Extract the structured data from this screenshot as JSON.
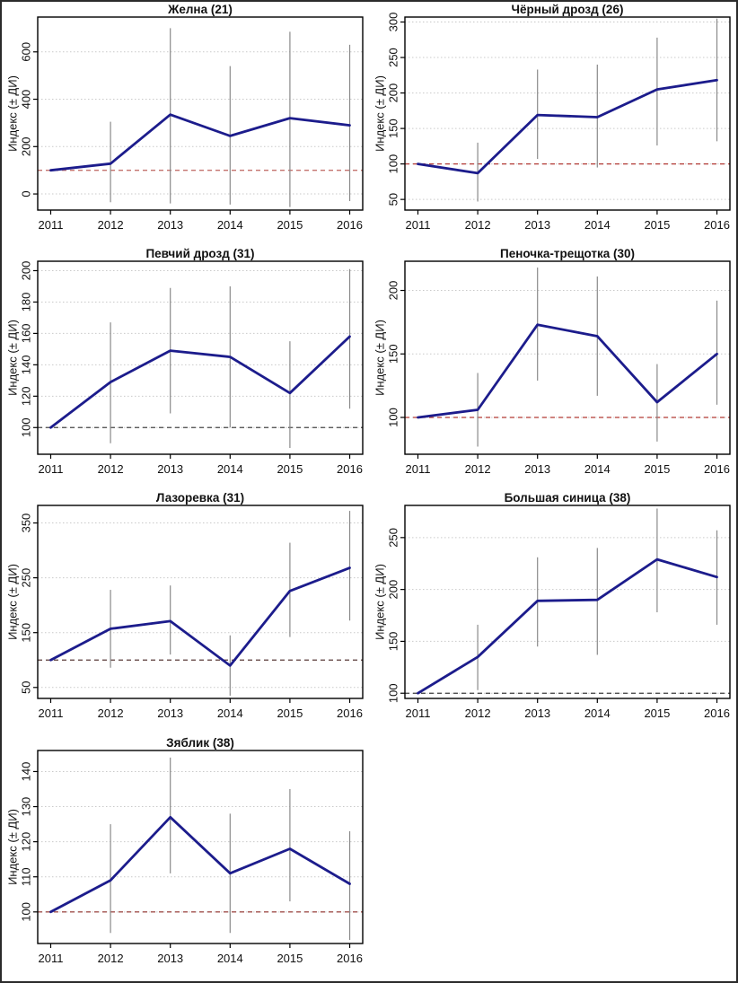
{
  "page": {
    "background": "#ffffff",
    "border_color": "#2b2b2b"
  },
  "style": {
    "line_color": "#1c1c8c",
    "errbar_color": "#8a8a8a",
    "grid_color": "#c9c9c9",
    "box_color": "#000000",
    "text_color": "#111111"
  },
  "chart_data": [
    {
      "type": "line",
      "title": "Желна (21)",
      "ylabel": "Индекс (± ДИ)",
      "x": [
        "2011",
        "2012",
        "2013",
        "2014",
        "2015",
        "2016"
      ],
      "values": [
        100,
        128,
        335,
        245,
        320,
        290
      ],
      "err_low": [
        null,
        -35,
        -40,
        -45,
        -55,
        -30
      ],
      "err_high": [
        null,
        305,
        700,
        540,
        685,
        630
      ],
      "yticks": [
        0,
        200,
        400,
        600
      ],
      "ylim": [
        -68,
        747
      ],
      "ref_value": 100,
      "ref_color": "#c4716d",
      "grid": true,
      "legend": "none"
    },
    {
      "type": "line",
      "title": "Чёрный дрозд (26)",
      "ylabel": "Индекс (± ДИ)",
      "x": [
        "2011",
        "2012",
        "2013",
        "2014",
        "2015",
        "2016"
      ],
      "values": [
        100,
        87,
        169,
        166,
        205,
        218
      ],
      "err_low": [
        null,
        47,
        107,
        95,
        126,
        132
      ],
      "err_high": [
        null,
        130,
        233,
        240,
        278,
        305
      ],
      "yticks": [
        50,
        100,
        150,
        200,
        250,
        300
      ],
      "ylim": [
        35,
        307
      ],
      "ref_value": 100,
      "ref_color": "#b23a35",
      "grid": true,
      "legend": "none"
    },
    {
      "type": "line",
      "title": "Певчий дрозд (31)",
      "ylabel": "Индекс (± ДИ)",
      "x": [
        "2011",
        "2012",
        "2013",
        "2014",
        "2015",
        "2016"
      ],
      "values": [
        100,
        129,
        149,
        145,
        122,
        158
      ],
      "err_low": [
        null,
        90,
        109,
        100,
        87,
        112
      ],
      "err_high": [
        null,
        167,
        189,
        190,
        155,
        201
      ],
      "yticks": [
        100,
        120,
        140,
        160,
        180,
        200
      ],
      "ylim": [
        83,
        206
      ],
      "ref_value": 100,
      "ref_color": "#474747",
      "grid": true,
      "legend": "none"
    },
    {
      "type": "line",
      "title": "Пеночка-трещотка (30)",
      "ylabel": "Индекс (± ДИ)",
      "x": [
        "2011",
        "2012",
        "2013",
        "2014",
        "2015",
        "2016"
      ],
      "values": [
        100,
        106,
        173,
        164,
        112,
        150
      ],
      "err_low": [
        null,
        77,
        129,
        117,
        81,
        110
      ],
      "err_high": [
        null,
        135,
        218,
        211,
        142,
        192
      ],
      "yticks": [
        100,
        150,
        200
      ],
      "ylim": [
        71,
        223
      ],
      "ref_value": 100,
      "ref_color": "#b23a35",
      "grid": true,
      "legend": "none"
    },
    {
      "type": "line",
      "title": "Лазоревка (31)",
      "ylabel": "Индекс (± ДИ)",
      "x": [
        "2011",
        "2012",
        "2013",
        "2014",
        "2015",
        "2016"
      ],
      "values": [
        100,
        157,
        171,
        90,
        226,
        268
      ],
      "err_low": [
        null,
        86,
        110,
        35,
        142,
        172
      ],
      "err_high": [
        null,
        228,
        236,
        145,
        314,
        372
      ],
      "yticks": [
        50,
        150,
        250,
        350
      ],
      "ylim": [
        30,
        382
      ],
      "ref_value": 100,
      "ref_color": "#5a3a38",
      "grid": true,
      "legend": "none"
    },
    {
      "type": "line",
      "title": "Большая синица (38)",
      "ylabel": "Индекс (± ДИ)",
      "x": [
        "2011",
        "2012",
        "2013",
        "2014",
        "2015",
        "2016"
      ],
      "values": [
        100,
        135,
        189,
        190,
        229,
        212
      ],
      "err_low": [
        null,
        103,
        145,
        137,
        178,
        166
      ],
      "err_high": [
        null,
        166,
        231,
        240,
        278,
        257
      ],
      "yticks": [
        100,
        150,
        200,
        250
      ],
      "ylim": [
        95,
        281
      ],
      "ref_value": 100,
      "ref_color": "#3c3c3c",
      "grid": true,
      "legend": "none"
    },
    {
      "type": "line",
      "title": "Зяблик (38)",
      "ylabel": "Индекс (± ДИ)",
      "x": [
        "2011",
        "2012",
        "2013",
        "2014",
        "2015",
        "2016"
      ],
      "values": [
        100,
        109,
        127,
        111,
        118,
        108
      ],
      "err_low": [
        null,
        94,
        111,
        94,
        103,
        92
      ],
      "err_high": [
        null,
        125,
        144,
        128,
        135,
        123
      ],
      "yticks": [
        100,
        110,
        120,
        130,
        140
      ],
      "ylim": [
        91,
        146
      ],
      "ref_value": 100,
      "ref_color": "#a1524e",
      "grid": true,
      "legend": "none"
    }
  ]
}
